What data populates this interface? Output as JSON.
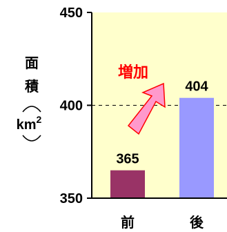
{
  "chart_data": {
    "type": "bar",
    "categories": [
      "前",
      "後"
    ],
    "values": [
      365,
      404
    ],
    "bar_colors": [
      "#993366",
      "#9999ff"
    ],
    "ylabel_lines": [
      "面",
      "積"
    ],
    "yunit": "km",
    "yunit_sup": "2",
    "ylim": [
      350,
      450
    ],
    "yticks": [
      350,
      400,
      450
    ],
    "gridline_at": 400,
    "annotation": "増加",
    "colors": {
      "plot_background": "#ffffcc",
      "annotation": "#ff0000",
      "arrow_fill": "#ff99cc",
      "arrow_stroke": "#ff0000"
    }
  }
}
